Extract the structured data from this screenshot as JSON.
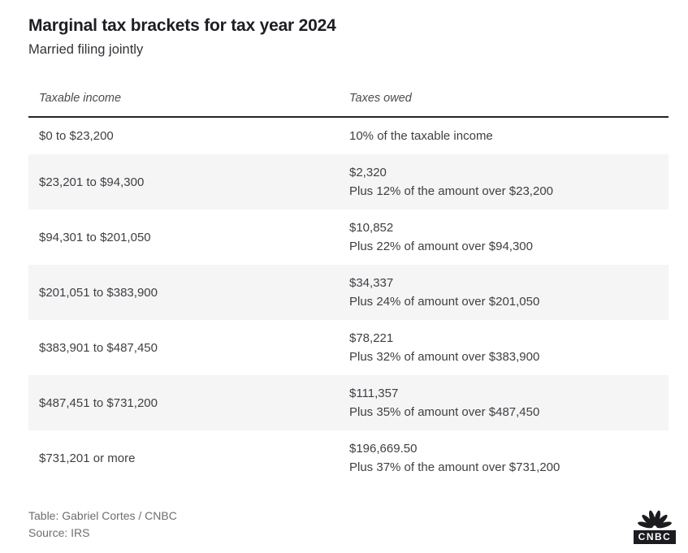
{
  "chart_data": {
    "type": "table",
    "title": "Marginal tax brackets for tax year 2024",
    "subtitle": "Married filing jointly",
    "columns": [
      "Taxable income",
      "Taxes owed"
    ],
    "rows": [
      {
        "taxable_income": "$0 to $23,200",
        "taxes_owed": [
          "10% of the taxable income"
        ]
      },
      {
        "taxable_income": "$23,201 to $94,300",
        "taxes_owed": [
          "$2,320",
          "Plus 12% of the amount over $23,200"
        ]
      },
      {
        "taxable_income": "$94,301 to $201,050",
        "taxes_owed": [
          "$10,852",
          "Plus 22% of amount over $94,300"
        ]
      },
      {
        "taxable_income": "$201,051 to $383,900",
        "taxes_owed": [
          "$34,337",
          "Plus 24% of amount over $201,050"
        ]
      },
      {
        "taxable_income": "$383,901 to $487,450",
        "taxes_owed": [
          "$78,221",
          "Plus 32% of amount over $383,900"
        ]
      },
      {
        "taxable_income": "$487,451 to $731,200",
        "taxes_owed": [
          "$111,357",
          "Plus 35% of amount over $487,450"
        ]
      },
      {
        "taxable_income": "$731,201 or more",
        "taxes_owed": [
          "$196,669.50",
          "Plus 37% of the amount over $731,200"
        ]
      }
    ],
    "layout": {
      "alt_row_shading": true,
      "header_rule": true
    }
  },
  "footer": {
    "credit": "Table: Gabriel Cortes / CNBC",
    "source": "Source: IRS",
    "logo_text": "CNBC"
  },
  "colors": {
    "title_text": "#1d1d23",
    "body_text": "#3f3f44",
    "header_text": "#4b4b52",
    "muted_text": "#6e6e73",
    "alt_row_bg": "#f5f5f6",
    "rule_and_logo": "#1c1c20",
    "background": "#ffffff"
  }
}
